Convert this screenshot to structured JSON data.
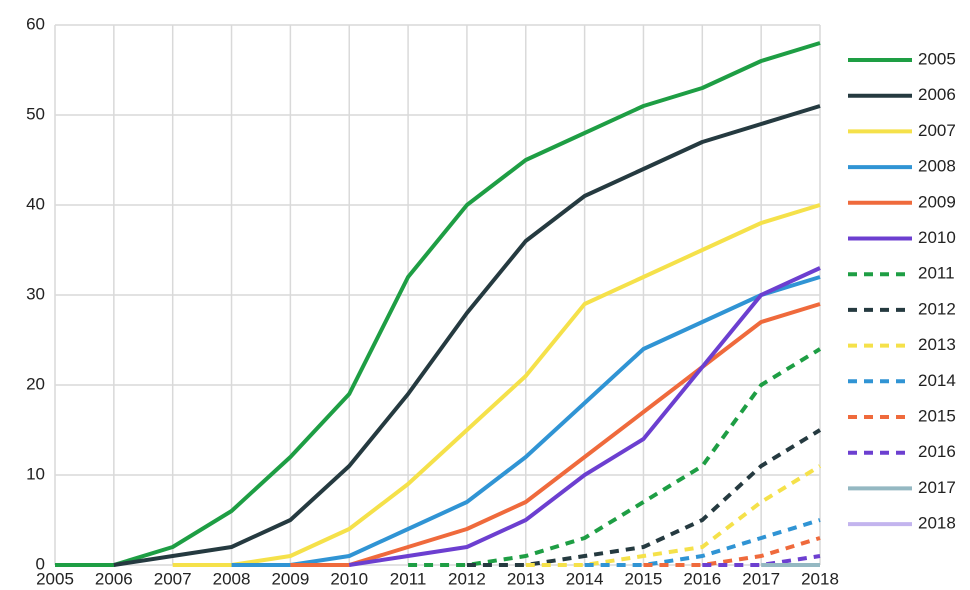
{
  "chart_data": {
    "type": "line",
    "categories": [
      "2005",
      "2006",
      "2007",
      "2008",
      "2009",
      "2010",
      "2011",
      "2012",
      "2013",
      "2014",
      "2015",
      "2016",
      "2017",
      "2018"
    ],
    "ylim": [
      0,
      60
    ],
    "yticks": [
      0,
      10,
      20,
      30,
      40,
      50,
      60
    ],
    "grid": true,
    "legend": "right",
    "series": [
      {
        "name": "2005",
        "color": "#1e9e44",
        "line_style": "solid",
        "values": [
          0,
          0,
          2,
          6,
          12,
          19,
          32,
          40,
          45,
          48,
          51,
          53,
          56,
          58
        ]
      },
      {
        "name": "2006",
        "color": "#253a40",
        "line_style": "solid",
        "values": [
          null,
          0,
          1,
          2,
          5,
          11,
          19,
          28,
          36,
          41,
          44,
          47,
          49,
          51
        ]
      },
      {
        "name": "2007",
        "color": "#f5e14a",
        "line_style": "solid",
        "values": [
          null,
          null,
          0,
          0,
          1,
          4,
          9,
          15,
          21,
          29,
          32,
          35,
          38,
          40
        ]
      },
      {
        "name": "2008",
        "color": "#3094d4",
        "line_style": "solid",
        "values": [
          null,
          null,
          null,
          0,
          0,
          1,
          4,
          7,
          12,
          18,
          24,
          27,
          30,
          32
        ]
      },
      {
        "name": "2009",
        "color": "#ef6a3c",
        "line_style": "solid",
        "values": [
          null,
          null,
          null,
          null,
          0,
          0,
          2,
          4,
          7,
          12,
          17,
          22,
          27,
          29
        ]
      },
      {
        "name": "2010",
        "color": "#6c3fd0",
        "line_style": "solid",
        "values": [
          null,
          null,
          null,
          null,
          null,
          0,
          1,
          2,
          5,
          10,
          14,
          22,
          30,
          33
        ]
      },
      {
        "name": "2011",
        "color": "#1e9e44",
        "line_style": "dashed",
        "values": [
          null,
          null,
          null,
          null,
          null,
          null,
          0,
          0,
          1,
          3,
          7,
          11,
          20,
          24
        ]
      },
      {
        "name": "2012",
        "color": "#253a40",
        "line_style": "dashed",
        "values": [
          null,
          null,
          null,
          null,
          null,
          null,
          null,
          0,
          0,
          1,
          2,
          5,
          11,
          15
        ]
      },
      {
        "name": "2013",
        "color": "#f5e14a",
        "line_style": "dashed",
        "values": [
          null,
          null,
          null,
          null,
          null,
          null,
          null,
          null,
          0,
          0,
          1,
          2,
          7,
          11
        ]
      },
      {
        "name": "2014",
        "color": "#3094d4",
        "line_style": "dashed",
        "values": [
          null,
          null,
          null,
          null,
          null,
          null,
          null,
          null,
          null,
          0,
          0,
          1,
          3,
          5
        ]
      },
      {
        "name": "2015",
        "color": "#ef6a3c",
        "line_style": "dashed",
        "values": [
          null,
          null,
          null,
          null,
          null,
          null,
          null,
          null,
          null,
          null,
          0,
          0,
          1,
          3
        ]
      },
      {
        "name": "2016",
        "color": "#6c3fd0",
        "line_style": "dashed",
        "values": [
          null,
          null,
          null,
          null,
          null,
          null,
          null,
          null,
          null,
          null,
          null,
          0,
          0,
          1
        ]
      },
      {
        "name": "2017",
        "color": "#94b8c2",
        "line_style": "solid",
        "values": [
          null,
          null,
          null,
          null,
          null,
          null,
          null,
          null,
          null,
          null,
          null,
          null,
          0,
          0
        ]
      },
      {
        "name": "2018",
        "color": "#c3b4ee",
        "line_style": "solid",
        "values": [
          null,
          null,
          null,
          null,
          null,
          null,
          null,
          null,
          null,
          null,
          null,
          null,
          null,
          0
        ]
      }
    ]
  }
}
